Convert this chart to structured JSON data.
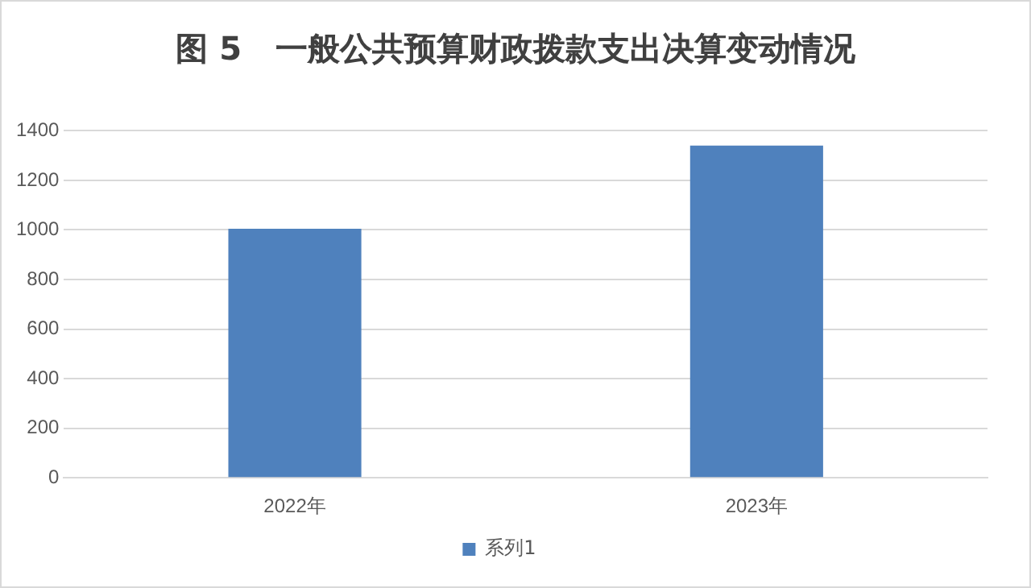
{
  "chart_data": {
    "type": "bar",
    "title": "图 5   一般公共预算财政拨款支出决算变动情况",
    "categories": [
      "2022年",
      "2023年"
    ],
    "series": [
      {
        "name": "系列1",
        "color": "#4f81bd",
        "values": [
          1005,
          1340
        ]
      }
    ],
    "ylim": [
      0,
      1400
    ],
    "yticks": [
      0,
      200,
      400,
      600,
      800,
      1000,
      1200,
      1400
    ],
    "grid": "y",
    "legend": "bottom"
  }
}
